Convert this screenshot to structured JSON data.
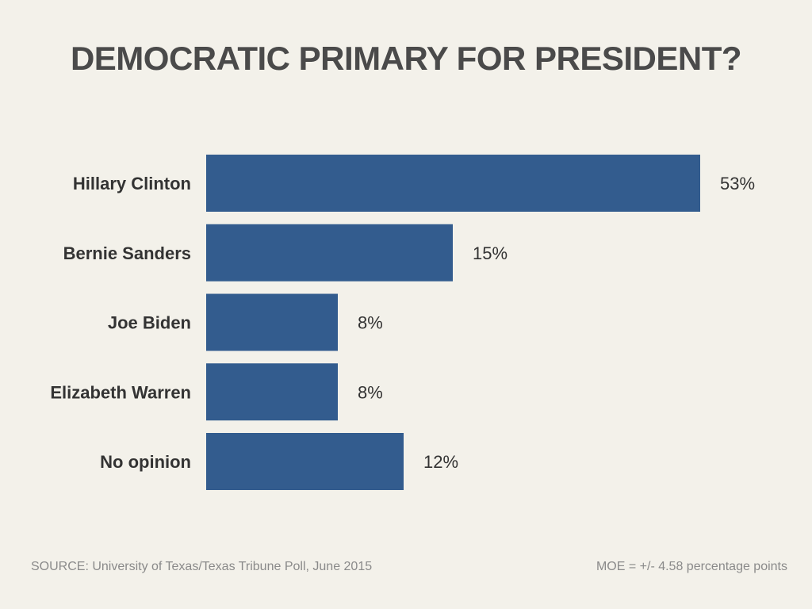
{
  "chart_data": {
    "type": "bar",
    "orientation": "horizontal",
    "title": "DEMOCRATIC PRIMARY FOR PRESIDENT?",
    "categories": [
      "Hillary Clinton",
      "Bernie Sanders",
      "Joe Biden",
      "Elizabeth Warren",
      "No opinion"
    ],
    "values": [
      53,
      15,
      8,
      8,
      12
    ],
    "value_labels": [
      "53%",
      "15%",
      "8%",
      "8%",
      "12%"
    ],
    "unit": "%",
    "bar_color": "#335c8e",
    "xlabel": "",
    "ylabel": "",
    "grid": false,
    "legend": "none"
  },
  "footer": {
    "source": "SOURCE: University of Texas/Texas Tribune Poll, June 2015",
    "moe": "MOE = +/- 4.58 percentage points"
  }
}
